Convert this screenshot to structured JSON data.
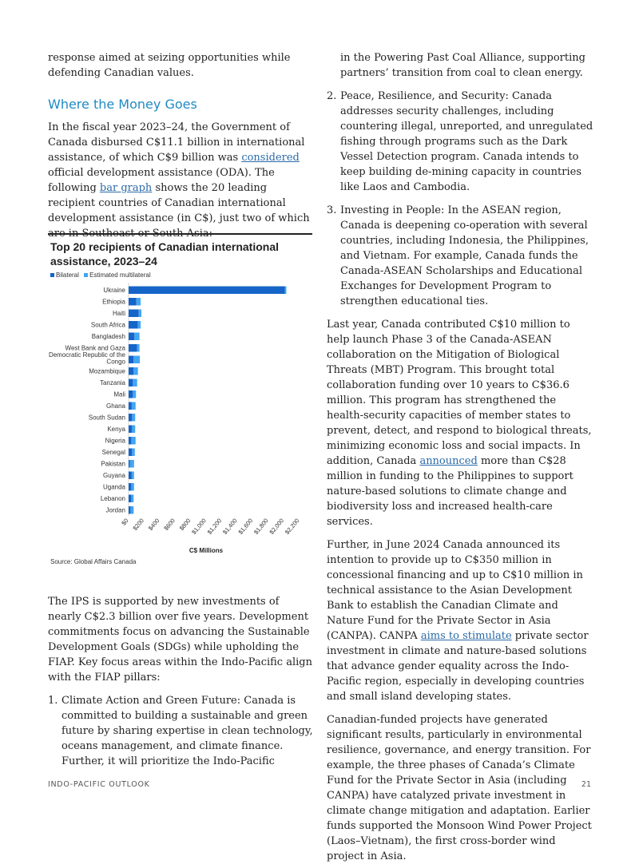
{
  "left": {
    "intro_tail": "response aimed at seizing opportunities while defending Canadian values.",
    "heading": "Where the Money Goes",
    "para1": {
      "t1": "In the fiscal year 2023–24, the Government of Canada disbursed C$11.1 billion in international assistance, of which C$9 billion was ",
      "link1": "considered",
      "t2": " official development assistance (ODA). The following ",
      "link2": "bar graph",
      "t3": " shows the 20 leading recipient countries of Canadian international development assistance (in C$), just two of which are in Southeast or South Asia:"
    },
    "para2": "The IPS is supported by new investments of nearly C$2.3 billion over five years. Development commitments focus on advancing the Sustainable Development Goals (SDGs) while upholding the FIAP. Key focus areas within the Indo-Pacific align with the FIAP pillars:",
    "item1": {
      "num": "1.",
      "text": "Climate Action and Green Future: Canada is committed to building a sustainable and green future by sharing expertise in clean technology, oceans management, and climate finance. Further, it will prioritize the Indo-Pacific"
    }
  },
  "right": {
    "item1_cont": "in the Powering Past Coal Alliance, supporting partners’ transition from coal to clean energy.",
    "item2": {
      "num": "2.",
      "text": "Peace, Resilience, and Security: Canada addresses security challenges, including countering illegal, unreported, and unregulated fishing through programs such as the Dark Vessel Detection program. Canada intends to keep building de-mining capacity in countries like Laos and Cambodia."
    },
    "item3": {
      "num": "3.",
      "text": "Investing in People: In the ASEAN region, Canada is deepening co-operation with several countries, including Indonesia, the Philippines, and Vietnam. For example, Canada funds the Canada-ASEAN Scholarships and Educational Exchanges for Development Program to strengthen educational ties."
    },
    "para1": {
      "t1": "Last year, Canada contributed C$10 million to help launch Phase 3 of the Canada-ASEAN collaboration on the Mitigation of Biological Threats (MBT) Program. This brought total collaboration funding over 10 years to C$36.6 million. This program has strengthened the health-security capacities of member states to prevent, detect, and respond to biological threats, minimizing economic loss and social impacts. In addition, Canada ",
      "link": "announced",
      "t2": " more than C$28 million in funding to the Philippines to support nature-based solutions to climate change and biodiversity loss and increased health-care services."
    },
    "para2": {
      "t1": "Further, in June 2024 Canada announced its intention to provide up to C$350 million in concessional financing and up to C$10 million in technical assistance to the Asian Development Bank to establish the Canadian Climate and Nature Fund for the Private Sector in Asia (CANPA). CANPA ",
      "link": "aims to stimulate",
      "t2": " private sector investment in climate and nature-based solutions that advance gender equality across the Indo-Pacific region, especially in developing countries and small island developing states."
    },
    "para3": "Canadian-funded projects have generated significant results, particularly in environmental resilience, governance, and energy transition. For example, the three phases of Canada’s Climate Fund for the Private Sector in Asia (including CANPA) have catalyzed private investment in climate change mitigation and adaptation. Earlier funds supported the Monsoon Wind Power Project (Laos–Vietnam), the first cross-border wind project in Asia."
  },
  "footer": {
    "left": "INDO-PACIFIC OUTLOOK",
    "right": "21"
  },
  "chart_data": {
    "type": "bar",
    "orientation": "horizontal",
    "stacked": true,
    "title": "Top 20 recipients of Canadian international assistance, 2023–24",
    "xlabel": "C$ Millions",
    "ylabel": "",
    "source": "Source: Global Affairs Canada",
    "legend_position": "top-left",
    "xlim": [
      0,
      2200
    ],
    "xticks": [
      "$0",
      "$200",
      "$400",
      "$600",
      "$800",
      "$1,000",
      "$1,200",
      "$1,400",
      "$1,600",
      "$1,800",
      "$2,000",
      "$2,200"
    ],
    "xtick_values": [
      0,
      200,
      400,
      600,
      800,
      1000,
      1200,
      1400,
      1600,
      1800,
      2000,
      2200
    ],
    "categories": [
      "Ukraine",
      "Ethiopia",
      "Haiti",
      "South Africa",
      "Bangladesh",
      "West Bank and Gaza",
      "Democratic Republic of the Congo",
      "Mozambique",
      "Tanzania",
      "Mali",
      "Ghana",
      "South Sudan",
      "Kenya",
      "Nigeria",
      "Senegal",
      "Pakistan",
      "Guyana",
      "Uganda",
      "Lebanon",
      "Jordan"
    ],
    "category_labels": [
      [
        "Ukraine"
      ],
      [
        "Ethiopia"
      ],
      [
        "Haiti"
      ],
      [
        "South Africa"
      ],
      [
        "Bangladesh"
      ],
      [
        "West Bank and Gaza"
      ],
      [
        "Democratic Republic of the",
        "Congo"
      ],
      [
        "Mozambique"
      ],
      [
        "Tanzania"
      ],
      [
        "Mali"
      ],
      [
        "Ghana"
      ],
      [
        "South Sudan"
      ],
      [
        "Kenya"
      ],
      [
        "Nigeria"
      ],
      [
        "Senegal"
      ],
      [
        "Pakistan"
      ],
      [
        "Guyana"
      ],
      [
        "Uganda"
      ],
      [
        "Lebanon"
      ],
      [
        "Jordan"
      ]
    ],
    "series": [
      {
        "name": "Bilateral",
        "color": "#1565c8",
        "values": [
          2010,
          100,
          130,
          120,
          75,
          110,
          65,
          65,
          55,
          55,
          40,
          45,
          45,
          35,
          45,
          15,
          40,
          35,
          35,
          25
        ]
      },
      {
        "name": "Estimated multilateral",
        "color": "#42a5f5",
        "values": [
          20,
          55,
          35,
          35,
          65,
          30,
          80,
          55,
          55,
          40,
          50,
          40,
          40,
          55,
          35,
          55,
          30,
          35,
          30,
          40
        ]
      }
    ]
  }
}
